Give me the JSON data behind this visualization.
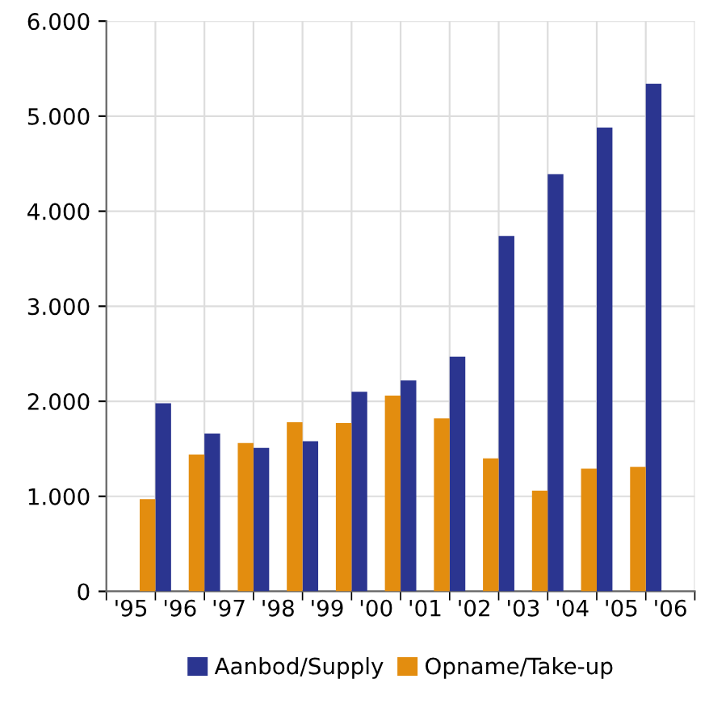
{
  "chart_data": {
    "type": "bar",
    "categories": [
      "'95",
      "'96",
      "'97",
      "'98",
      "'99",
      "'00",
      "'01",
      "'02",
      "'03",
      "'04",
      "'05",
      "'06"
    ],
    "series": [
      {
        "name": "Aanbod/Supply",
        "color": "#2b3590",
        "values": [
          null,
          1980,
          1660,
          1510,
          1580,
          2100,
          2220,
          2470,
          3740,
          4390,
          4880,
          5340
        ]
      },
      {
        "name": "Opname/Take-up",
        "color": "#e38d0f",
        "values": [
          970,
          1440,
          1560,
          1780,
          1770,
          2060,
          1820,
          1400,
          1060,
          1290,
          1310,
          null
        ]
      }
    ],
    "ylim": [
      0,
      6000
    ],
    "yticks": [
      {
        "value": 0,
        "label": "0"
      },
      {
        "value": 1000,
        "label": "1.000"
      },
      {
        "value": 2000,
        "label": "2.000"
      },
      {
        "value": 3000,
        "label": "3.000"
      },
      {
        "value": 4000,
        "label": "4.000"
      },
      {
        "value": 5000,
        "label": "5.000"
      },
      {
        "value": 6000,
        "label": "6.000"
      }
    ],
    "grid": true,
    "legend": "bottom"
  }
}
